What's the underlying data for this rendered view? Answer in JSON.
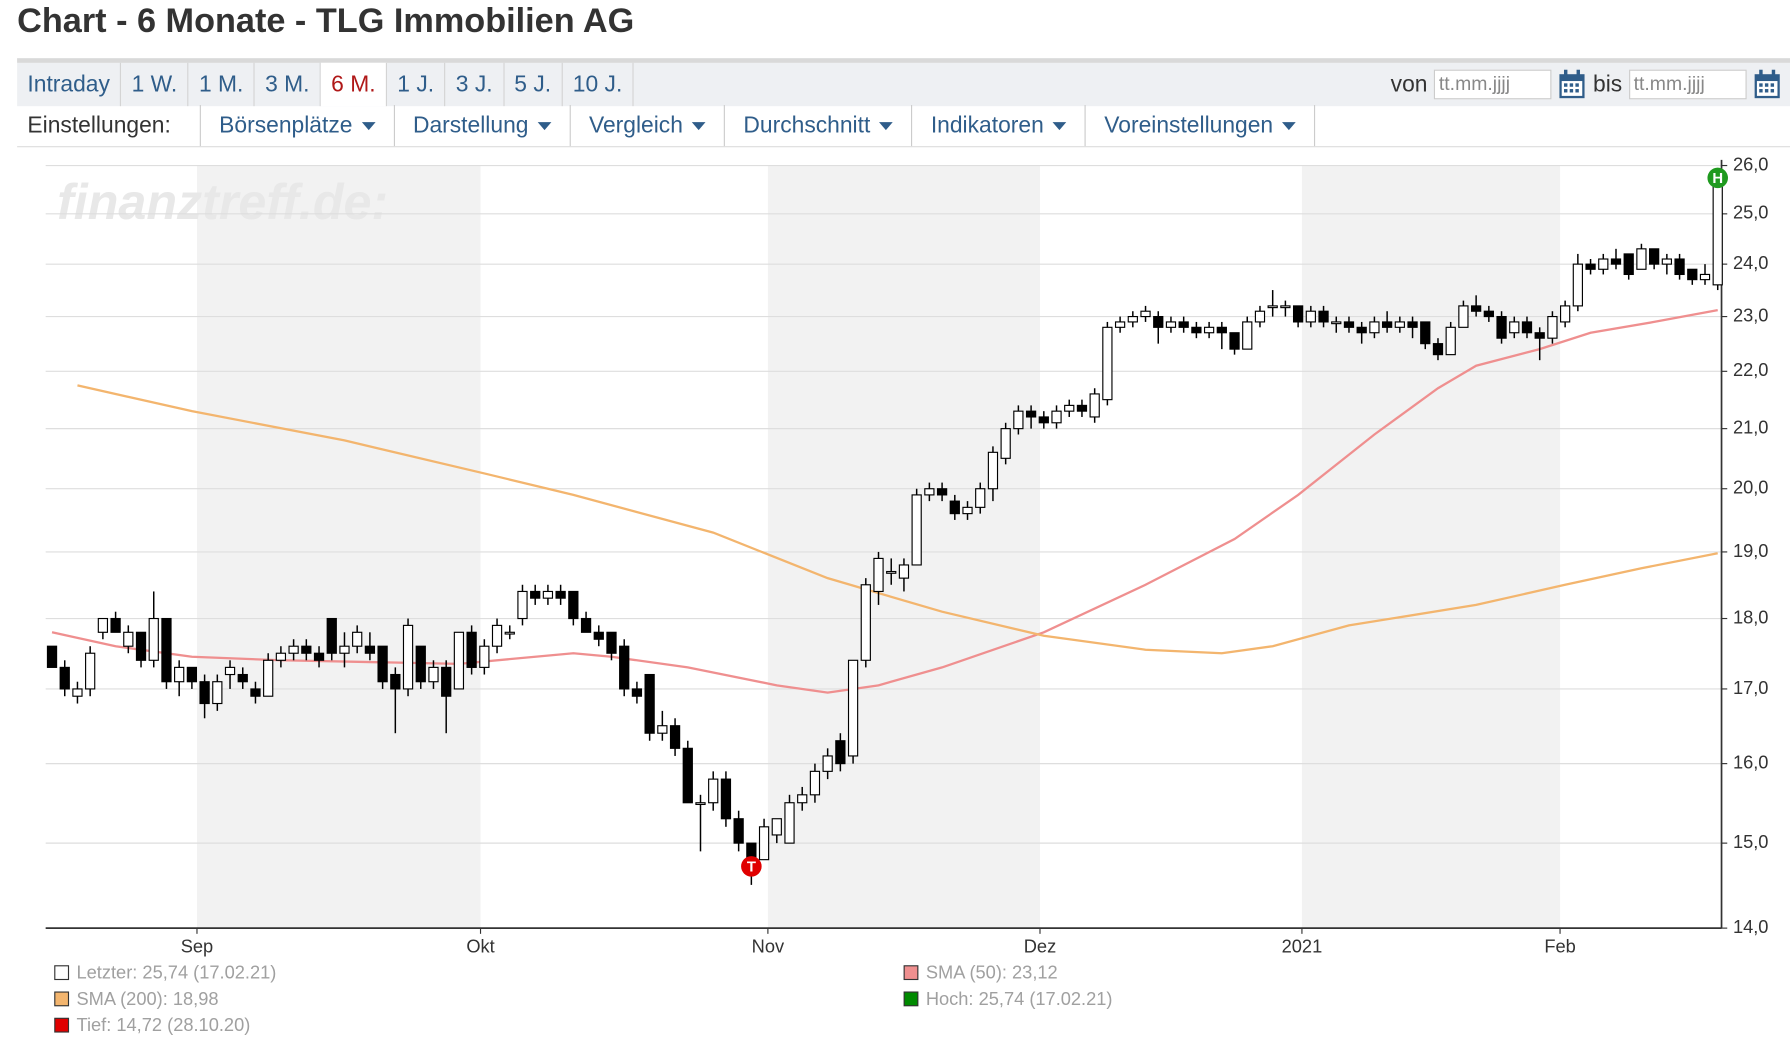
{
  "header": {
    "title": "Chart - 6 Monate - TLG Immobilien AG",
    "tabs": [
      "Intraday",
      "1 W.",
      "1 M.",
      "3 M.",
      "6 M.",
      "1 J.",
      "3 J.",
      "5 J.",
      "10 J."
    ],
    "active_tab": "6 M.",
    "from_label": "von",
    "to_label": "bis",
    "date_placeholder": "tt.mm.jjjj",
    "settings_label": "Einstellungen:",
    "menus": [
      "Börsenplätze",
      "Darstellung",
      "Vergleich",
      "Durchschnitt",
      "Indikatoren",
      "Voreinstellungen"
    ]
  },
  "chart_data": {
    "type": "candlestick",
    "watermark": "finanztreff.de:",
    "log": true,
    "grid": true,
    "ylim": [
      14,
      26
    ],
    "yticks": [
      {
        "value": 14,
        "label": "14,0"
      },
      {
        "value": 15,
        "label": "15,0"
      },
      {
        "value": 16,
        "label": "16,0"
      },
      {
        "value": 17,
        "label": "17,0"
      },
      {
        "value": 18,
        "label": "18,0"
      },
      {
        "value": 19,
        "label": "19,0"
      },
      {
        "value": 20,
        "label": "20,0"
      },
      {
        "value": 21,
        "label": "21,0"
      },
      {
        "value": 22,
        "label": "22,0"
      },
      {
        "value": 23,
        "label": "23,0"
      },
      {
        "value": 24,
        "label": "24,0"
      },
      {
        "value": 25,
        "label": "25,0"
      },
      {
        "value": 26,
        "label": "26,0"
      }
    ],
    "xlim": [
      -0.5,
      131.3
    ],
    "xticks": [
      {
        "value": 11.4,
        "label": "Sep"
      },
      {
        "value": 33.7,
        "label": "Okt"
      },
      {
        "value": 56.3,
        "label": "Nov"
      },
      {
        "value": 77.7,
        "label": "Dez"
      },
      {
        "value": 98.3,
        "label": "2021"
      },
      {
        "value": 118.6,
        "label": "Feb"
      }
    ],
    "band_color": "#f2f2f2",
    "up_color": "#ffffff",
    "down_color": "#000000",
    "ohlc": [
      [
        17.6,
        17.6,
        17.3,
        17.3
      ],
      [
        17.3,
        17.4,
        16.9,
        17.0
      ],
      [
        16.9,
        17.1,
        16.8,
        17.0
      ],
      [
        17.0,
        17.6,
        16.9,
        17.5
      ],
      [
        17.8,
        18.0,
        17.7,
        18.0
      ],
      [
        18.0,
        18.1,
        17.8,
        17.8
      ],
      [
        17.6,
        17.9,
        17.5,
        17.8
      ],
      [
        17.8,
        17.8,
        17.3,
        17.4
      ],
      [
        17.4,
        18.4,
        17.3,
        18.0
      ],
      [
        18.0,
        18.0,
        17.0,
        17.1
      ],
      [
        17.1,
        17.4,
        16.9,
        17.3
      ],
      [
        17.3,
        17.3,
        17.0,
        17.1
      ],
      [
        17.1,
        17.2,
        16.6,
        16.8
      ],
      [
        16.8,
        17.2,
        16.7,
        17.1
      ],
      [
        17.2,
        17.4,
        17.0,
        17.3
      ],
      [
        17.2,
        17.3,
        17.0,
        17.1
      ],
      [
        17.0,
        17.1,
        16.8,
        16.9
      ],
      [
        16.9,
        17.5,
        16.9,
        17.4
      ],
      [
        17.4,
        17.6,
        17.3,
        17.5
      ],
      [
        17.5,
        17.7,
        17.4,
        17.6
      ],
      [
        17.6,
        17.7,
        17.4,
        17.5
      ],
      [
        17.5,
        17.6,
        17.3,
        17.4
      ],
      [
        18.0,
        18.0,
        17.4,
        17.5
      ],
      [
        17.5,
        17.8,
        17.3,
        17.6
      ],
      [
        17.6,
        17.9,
        17.5,
        17.8
      ],
      [
        17.6,
        17.8,
        17.4,
        17.5
      ],
      [
        17.6,
        17.6,
        17.0,
        17.1
      ],
      [
        17.2,
        17.3,
        16.4,
        17.0
      ],
      [
        17.0,
        18.0,
        16.9,
        17.9
      ],
      [
        17.6,
        17.6,
        17.0,
        17.1
      ],
      [
        17.1,
        17.4,
        17.0,
        17.3
      ],
      [
        17.3,
        17.4,
        16.4,
        16.9
      ],
      [
        17.0,
        17.8,
        17.0,
        17.8
      ],
      [
        17.8,
        17.9,
        17.2,
        17.3
      ],
      [
        17.3,
        17.7,
        17.2,
        17.6
      ],
      [
        17.6,
        18.0,
        17.5,
        17.9
      ],
      [
        17.8,
        17.9,
        17.7,
        17.8
      ],
      [
        18.0,
        18.5,
        17.9,
        18.4
      ],
      [
        18.4,
        18.5,
        18.2,
        18.3
      ],
      [
        18.3,
        18.5,
        18.2,
        18.4
      ],
      [
        18.4,
        18.5,
        18.2,
        18.3
      ],
      [
        18.4,
        18.4,
        17.9,
        18.0
      ],
      [
        18.0,
        18.1,
        17.8,
        17.8
      ],
      [
        17.8,
        17.9,
        17.6,
        17.7
      ],
      [
        17.8,
        17.8,
        17.4,
        17.5
      ],
      [
        17.6,
        17.7,
        16.9,
        17.0
      ],
      [
        17.0,
        17.1,
        16.8,
        16.9
      ],
      [
        17.2,
        17.2,
        16.3,
        16.4
      ],
      [
        16.4,
        16.7,
        16.3,
        16.5
      ],
      [
        16.5,
        16.6,
        16.1,
        16.2
      ],
      [
        16.2,
        16.3,
        15.5,
        15.5
      ],
      [
        15.5,
        15.6,
        14.9,
        15.5
      ],
      [
        15.5,
        15.9,
        15.4,
        15.8
      ],
      [
        15.8,
        15.9,
        15.2,
        15.3
      ],
      [
        15.3,
        15.4,
        14.9,
        15.0
      ],
      [
        15.0,
        15.0,
        14.5,
        14.72
      ],
      [
        14.8,
        15.3,
        14.8,
        15.2
      ],
      [
        15.1,
        15.3,
        15.0,
        15.3
      ],
      [
        15.0,
        15.6,
        15.0,
        15.5
      ],
      [
        15.5,
        15.7,
        15.4,
        15.6
      ],
      [
        15.6,
        16.0,
        15.5,
        15.9
      ],
      [
        15.9,
        16.2,
        15.8,
        16.1
      ],
      [
        16.3,
        16.4,
        15.9,
        16.0
      ],
      [
        16.1,
        17.4,
        16.0,
        17.4
      ],
      [
        17.4,
        18.6,
        17.3,
        18.5
      ],
      [
        18.4,
        19.0,
        18.2,
        18.9
      ],
      [
        18.7,
        18.9,
        18.5,
        18.7
      ],
      [
        18.6,
        18.9,
        18.4,
        18.8
      ],
      [
        18.8,
        20.0,
        18.8,
        19.9
      ],
      [
        19.9,
        20.1,
        19.8,
        20.0
      ],
      [
        20.0,
        20.1,
        19.8,
        19.9
      ],
      [
        19.8,
        19.9,
        19.5,
        19.6
      ],
      [
        19.6,
        19.8,
        19.5,
        19.7
      ],
      [
        19.7,
        20.1,
        19.6,
        20.0
      ],
      [
        20.0,
        20.7,
        19.8,
        20.6
      ],
      [
        20.5,
        21.1,
        20.4,
        21.0
      ],
      [
        21.0,
        21.4,
        20.9,
        21.3
      ],
      [
        21.3,
        21.4,
        21.0,
        21.2
      ],
      [
        21.2,
        21.3,
        21.0,
        21.1
      ],
      [
        21.1,
        21.4,
        21.0,
        21.3
      ],
      [
        21.3,
        21.5,
        21.2,
        21.4
      ],
      [
        21.4,
        21.5,
        21.2,
        21.3
      ],
      [
        21.2,
        21.7,
        21.1,
        21.6
      ],
      [
        21.5,
        22.9,
        21.4,
        22.8
      ],
      [
        22.8,
        23.0,
        22.7,
        22.9
      ],
      [
        22.9,
        23.1,
        22.8,
        23.0
      ],
      [
        23.0,
        23.2,
        22.9,
        23.1
      ],
      [
        23.0,
        23.1,
        22.5,
        22.8
      ],
      [
        22.8,
        23.0,
        22.7,
        22.9
      ],
      [
        22.9,
        23.0,
        22.7,
        22.8
      ],
      [
        22.8,
        22.9,
        22.6,
        22.7
      ],
      [
        22.7,
        22.9,
        22.6,
        22.8
      ],
      [
        22.8,
        22.9,
        22.4,
        22.7
      ],
      [
        22.7,
        22.7,
        22.3,
        22.4
      ],
      [
        22.4,
        23.0,
        22.4,
        22.9
      ],
      [
        22.9,
        23.2,
        22.8,
        23.1
      ],
      [
        23.2,
        23.5,
        23.0,
        23.2
      ],
      [
        23.2,
        23.3,
        23.0,
        23.2
      ],
      [
        23.2,
        23.2,
        22.8,
        22.9
      ],
      [
        22.9,
        23.2,
        22.8,
        23.1
      ],
      [
        23.1,
        23.2,
        22.8,
        22.9
      ],
      [
        22.9,
        23.0,
        22.7,
        22.9
      ],
      [
        22.9,
        23.0,
        22.7,
        22.8
      ],
      [
        22.8,
        22.9,
        22.5,
        22.7
      ],
      [
        22.7,
        23.0,
        22.6,
        22.9
      ],
      [
        22.9,
        23.1,
        22.7,
        22.8
      ],
      [
        22.8,
        23.0,
        22.7,
        22.9
      ],
      [
        22.9,
        23.0,
        22.6,
        22.8
      ],
      [
        22.9,
        22.9,
        22.4,
        22.5
      ],
      [
        22.5,
        22.6,
        22.2,
        22.3
      ],
      [
        22.3,
        22.9,
        22.3,
        22.8
      ],
      [
        22.8,
        23.3,
        22.8,
        23.2
      ],
      [
        23.2,
        23.4,
        23.0,
        23.1
      ],
      [
        23.1,
        23.2,
        22.9,
        23.0
      ],
      [
        23.0,
        23.1,
        22.5,
        22.6
      ],
      [
        22.7,
        23.0,
        22.6,
        22.9
      ],
      [
        22.9,
        23.0,
        22.6,
        22.7
      ],
      [
        22.7,
        22.8,
        22.2,
        22.6
      ],
      [
        22.6,
        23.1,
        22.5,
        23.0
      ],
      [
        22.9,
        23.3,
        22.8,
        23.2
      ],
      [
        23.2,
        24.2,
        23.1,
        24.0
      ],
      [
        24.0,
        24.1,
        23.8,
        23.9
      ],
      [
        23.9,
        24.2,
        23.8,
        24.1
      ],
      [
        24.1,
        24.3,
        23.9,
        24.0
      ],
      [
        24.2,
        24.2,
        23.7,
        23.8
      ],
      [
        23.9,
        24.4,
        23.9,
        24.3
      ],
      [
        24.3,
        24.3,
        23.9,
        24.0
      ],
      [
        24.0,
        24.2,
        23.8,
        24.1
      ],
      [
        24.1,
        24.2,
        23.7,
        23.8
      ],
      [
        23.9,
        23.9,
        23.6,
        23.7
      ],
      [
        23.7,
        24.0,
        23.6,
        23.8
      ],
      [
        23.6,
        25.74,
        23.5,
        25.74
      ]
    ],
    "series": [
      {
        "name": "SMA (50): 23,12",
        "color": "#ef8f8f",
        "x": [
          0,
          5,
          11,
          18,
          32,
          41,
          44,
          50,
          57,
          61,
          65,
          70,
          78,
          86,
          93,
          98,
          104,
          109,
          112,
          117,
          121,
          126,
          131
        ],
        "values": [
          17.8,
          17.6,
          17.45,
          17.4,
          17.35,
          17.5,
          17.45,
          17.3,
          17.05,
          16.95,
          17.05,
          17.3,
          17.8,
          18.5,
          19.2,
          19.9,
          20.9,
          21.7,
          22.1,
          22.4,
          22.7,
          22.9,
          23.12
        ]
      },
      {
        "name": "SMA (200): 18,98",
        "color": "#f3b56e",
        "x": [
          2,
          11,
          23,
          34,
          41,
          52,
          61,
          70,
          78,
          86,
          92,
          96,
          102,
          112,
          119,
          125,
          131
        ],
        "values": [
          21.75,
          21.3,
          20.8,
          20.25,
          19.9,
          19.3,
          18.6,
          18.1,
          17.75,
          17.55,
          17.5,
          17.6,
          17.9,
          18.2,
          18.5,
          18.75,
          18.98
        ]
      }
    ],
    "legend_items": [
      {
        "label": "Letzter: 25,74 (17.02.21)",
        "color": "#ffffff"
      },
      {
        "label": "Tief: 14,72 (28.10.20)",
        "color": "#e00000"
      },
      {
        "label": "Hoch: 25,74 (17.02.21)",
        "color": "#008a00"
      }
    ],
    "low_marker": {
      "label": "T",
      "color": "#e00000"
    },
    "high_marker": {
      "label": "H",
      "color": "#1f9a1f"
    }
  }
}
